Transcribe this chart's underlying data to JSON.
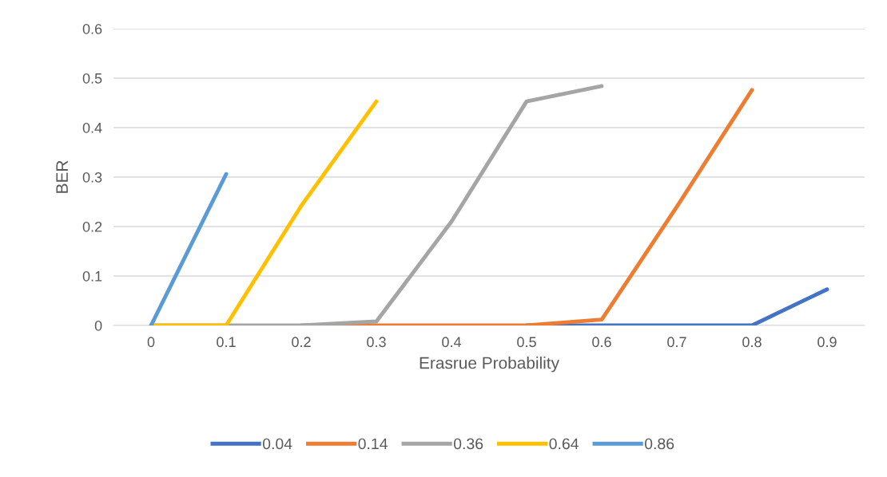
{
  "chart_data": {
    "type": "line",
    "xlabel": "Erasrue Probability",
    "ylabel": "BER",
    "categories": [
      "0",
      "0.1",
      "0.2",
      "0.3",
      "0.4",
      "0.5",
      "0.6",
      "0.7",
      "0.8",
      "0.9"
    ],
    "series": [
      {
        "name": "0.04",
        "color": "#4472c4",
        "values": [
          null,
          null,
          null,
          null,
          null,
          0,
          0,
          0,
          0,
          0.073
        ]
      },
      {
        "name": "0.14",
        "color": "#ed7d31",
        "values": [
          null,
          null,
          0,
          0,
          0,
          0,
          0.012,
          0.24,
          0.476,
          null
        ]
      },
      {
        "name": "0.36",
        "color": "#a5a5a5",
        "values": [
          0,
          0,
          0,
          0.008,
          0.21,
          0.453,
          0.484,
          null,
          null,
          null
        ]
      },
      {
        "name": "0.64",
        "color": "#ffc000",
        "values": [
          0,
          0,
          0.242,
          0.453,
          null,
          null,
          null,
          null,
          null,
          null
        ]
      },
      {
        "name": "0.86",
        "color": "#5b9bd5",
        "values": [
          0,
          0.306,
          null,
          null,
          null,
          null,
          null,
          null,
          null,
          null
        ]
      }
    ],
    "ylim": [
      0,
      0.6
    ],
    "yticks": [
      0,
      0.1,
      0.2,
      0.3,
      0.4,
      0.5,
      0.6
    ],
    "grid": "y",
    "legend": "bottom",
    "marker": "none",
    "line_style": "solid"
  }
}
